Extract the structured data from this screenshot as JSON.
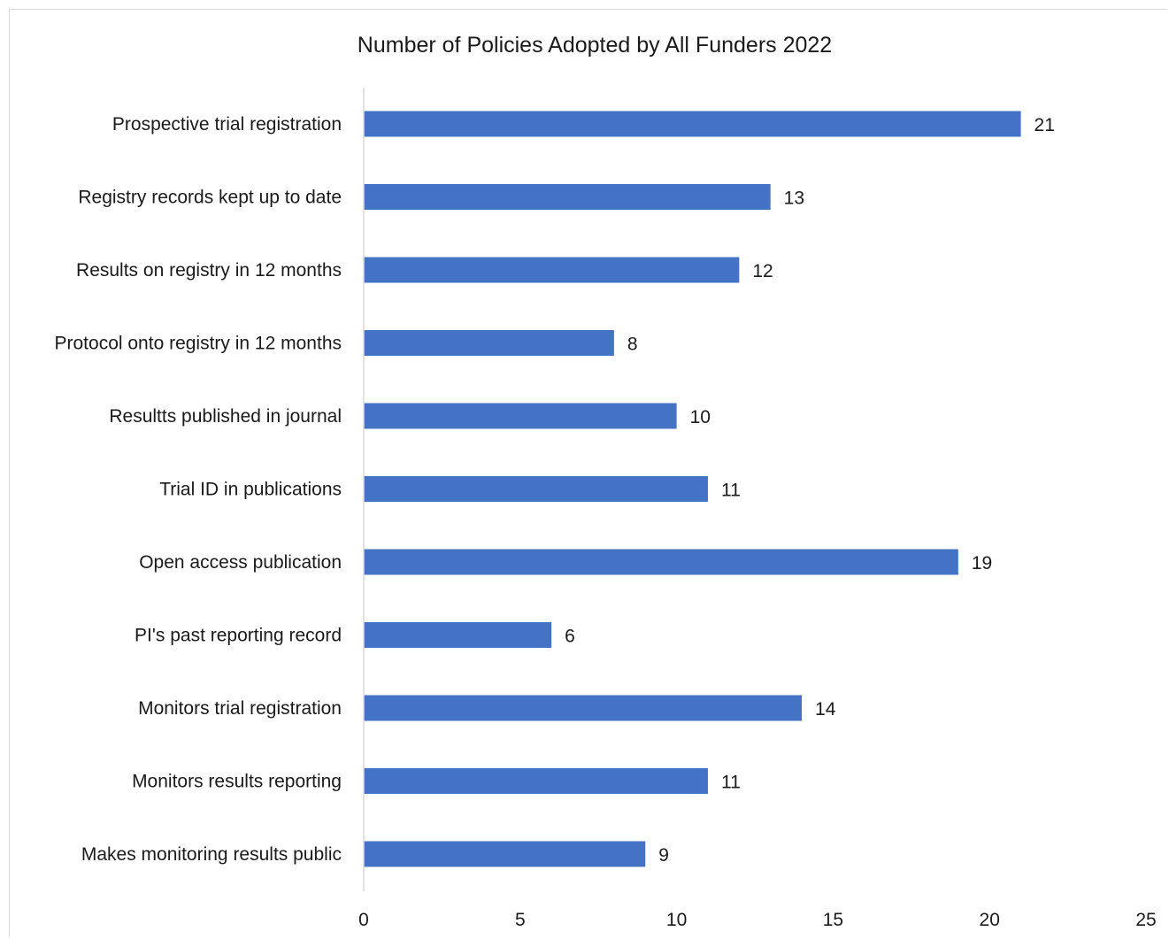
{
  "chart_data": {
    "type": "bar",
    "orientation": "horizontal",
    "title": "Number of Policies Adopted by All Funders 2022",
    "xlabel": "",
    "ylabel": "",
    "categories": [
      "Prospective trial registration",
      "Registry records kept up to date",
      "Results on registry in 12 months",
      "Protocol onto registry in 12 months",
      "Resultts published in journal",
      "Trial ID in publications",
      "Open access publication",
      "PI's past reporting record",
      "Monitors trial registration",
      "Monitors results reporting",
      "Makes monitoring results public"
    ],
    "values": [
      21,
      13,
      12,
      8,
      10,
      11,
      19,
      6,
      14,
      11,
      9
    ],
    "xlim": [
      0,
      25
    ],
    "x_ticks": [
      0,
      5,
      10,
      15,
      20,
      25
    ],
    "grid": false,
    "legend": "none",
    "data_labels": true,
    "bar_color": "#4472c4",
    "axis_color": "#d9d9d9",
    "text_color": "#1a1a1a"
  }
}
